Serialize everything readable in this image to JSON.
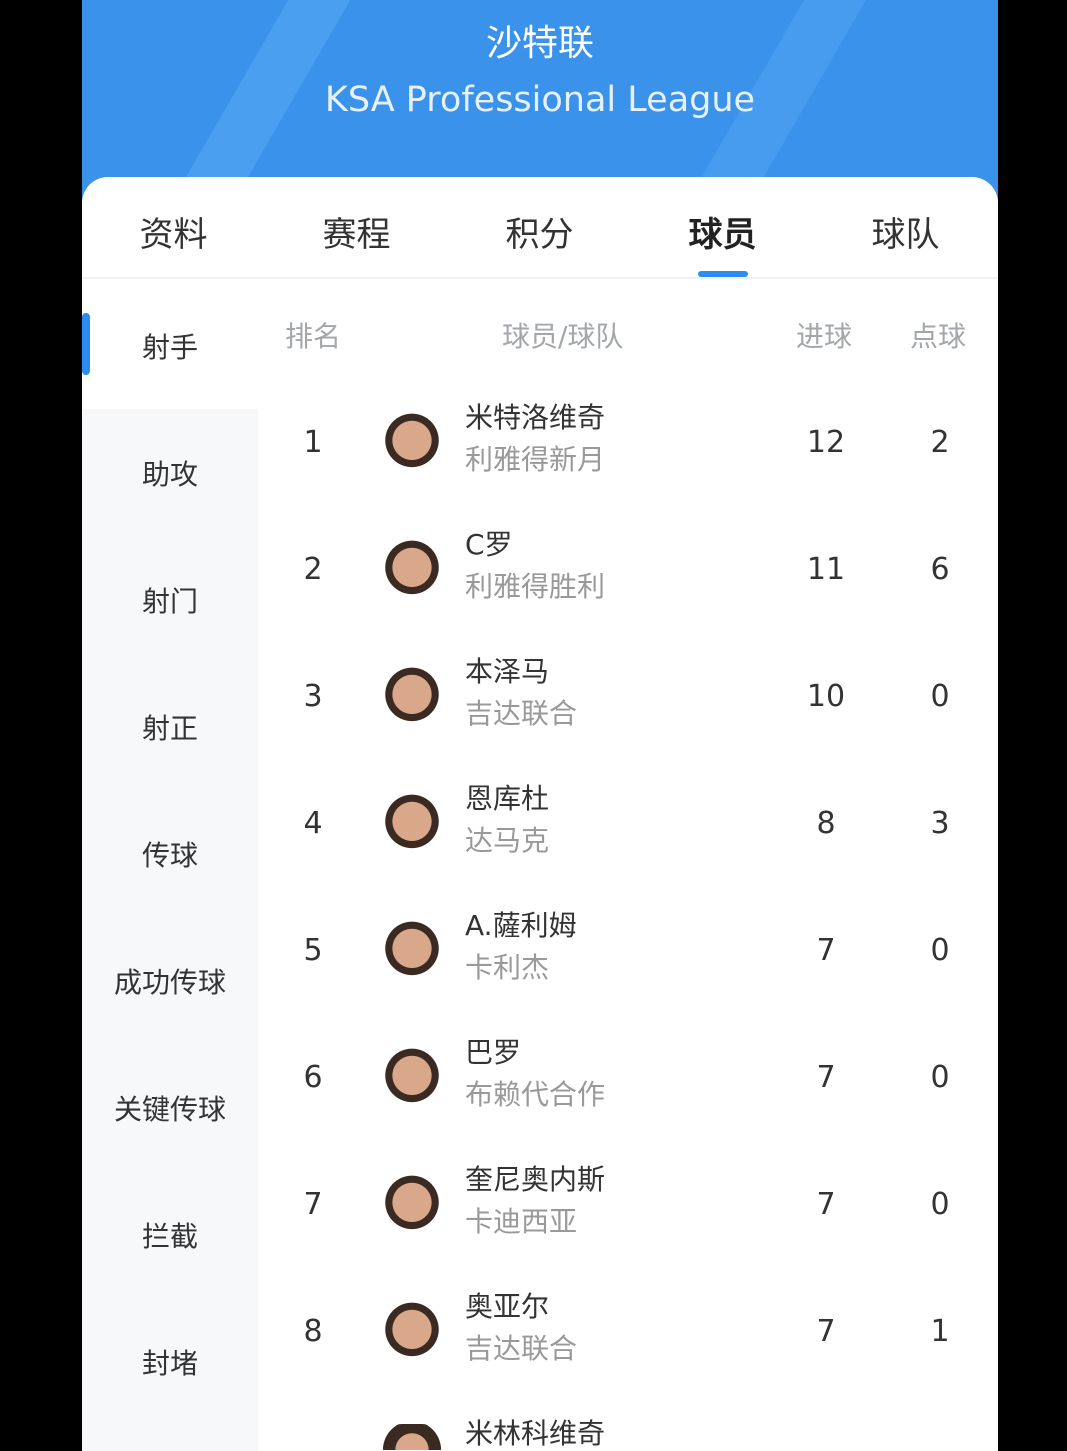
{
  "header": {
    "title": "沙特联",
    "subtitle": "KSA Professional League"
  },
  "tabs": [
    {
      "label": "资料"
    },
    {
      "label": "赛程"
    },
    {
      "label": "积分"
    },
    {
      "label": "球员",
      "active": true
    },
    {
      "label": "球队"
    }
  ],
  "sidebar": [
    {
      "label": "射手",
      "active": true
    },
    {
      "label": "助攻"
    },
    {
      "label": "射门"
    },
    {
      "label": "射正"
    },
    {
      "label": "传球"
    },
    {
      "label": "成功传球"
    },
    {
      "label": "关键传球"
    },
    {
      "label": "拦截"
    },
    {
      "label": "封堵"
    }
  ],
  "table": {
    "headers": {
      "rank": "排名",
      "player": "球员/球队",
      "goals": "进球",
      "penalties": "点球"
    },
    "rows": [
      {
        "rank": "1",
        "name": "米特洛维奇",
        "team": "利雅得新月",
        "goals": "12",
        "penalties": "2"
      },
      {
        "rank": "2",
        "name": "C罗",
        "team": "利雅得胜利",
        "goals": "11",
        "penalties": "6"
      },
      {
        "rank": "3",
        "name": "本泽马",
        "team": "吉达联合",
        "goals": "10",
        "penalties": "0"
      },
      {
        "rank": "4",
        "name": "恩库杜",
        "team": "达马克",
        "goals": "8",
        "penalties": "3"
      },
      {
        "rank": "5",
        "name": "A.薩利姆",
        "team": "卡利杰",
        "goals": "7",
        "penalties": "0"
      },
      {
        "rank": "6",
        "name": "巴罗",
        "team": "布赖代合作",
        "goals": "7",
        "penalties": "0"
      },
      {
        "rank": "7",
        "name": "奎尼奥内斯",
        "team": "卡迪西亚",
        "goals": "7",
        "penalties": "0"
      },
      {
        "rank": "8",
        "name": "奥亚尔",
        "team": "吉达联合",
        "goals": "7",
        "penalties": "1"
      },
      {
        "rank": "",
        "name": "米林科维奇",
        "team": "",
        "goals": "",
        "penalties": ""
      }
    ]
  },
  "colors": {
    "header": "#3a92ea",
    "accent": "#2d8cf0"
  }
}
